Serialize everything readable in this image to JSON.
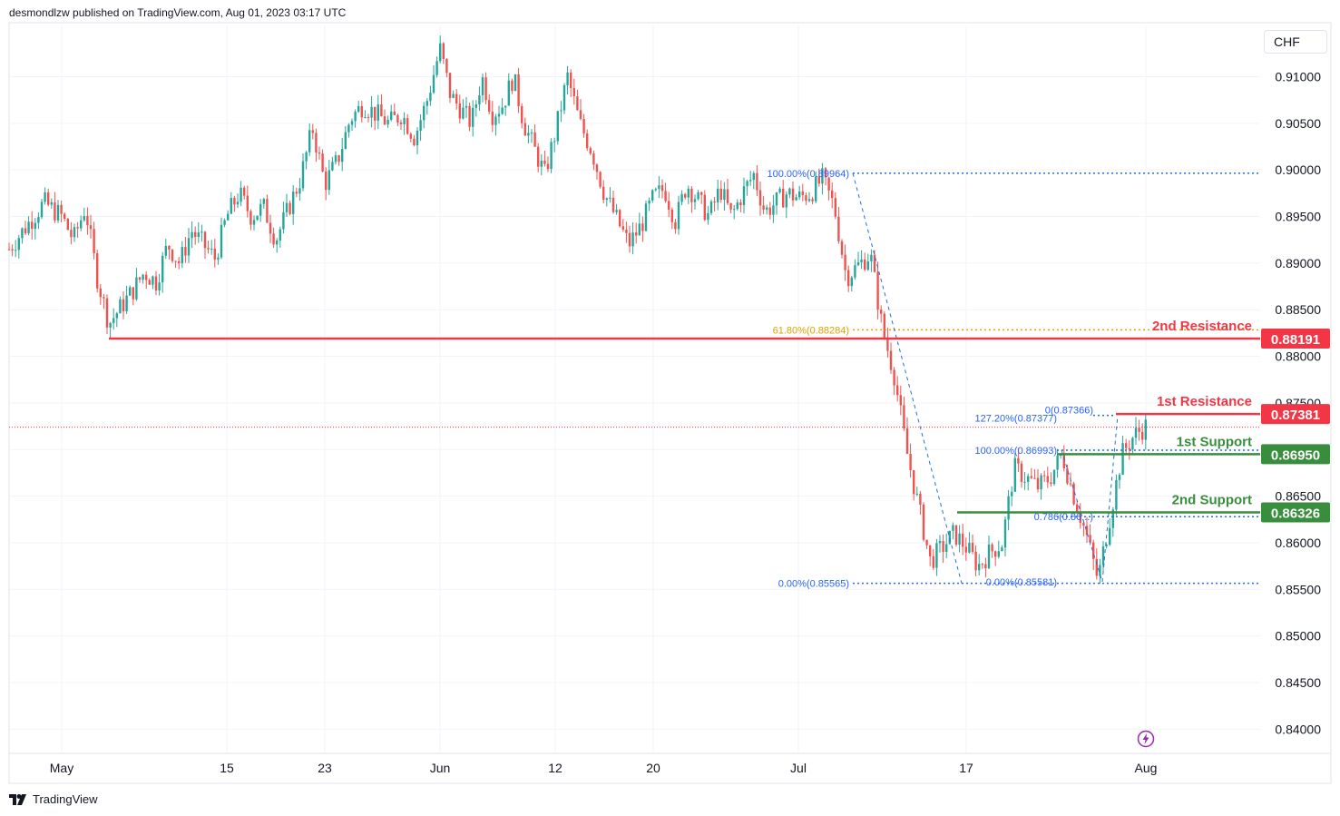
{
  "header": {
    "published": "desmondlzw published on TradingView.com, Aug 01, 2023 03:17 UTC"
  },
  "footer": {
    "brand": "TradingView"
  },
  "currency_label": "CHF",
  "colors": {
    "up": "#26a69a",
    "down": "#ef5350",
    "resistance": "#f23645",
    "support": "#388e3c",
    "fib": "#2962ff",
    "fib_gold": "#e0a100",
    "grid": "#f0f3fa"
  },
  "icons": [
    "tradingview-logo-icon",
    "lightning-icon"
  ],
  "chart_data": {
    "type": "candlestick",
    "ylim": [
      0.8375,
      0.9155
    ],
    "y_ticks": [
      "0.91000",
      "0.90500",
      "0.90000",
      "0.89500",
      "0.89000",
      "0.88500",
      "0.88000",
      "0.87500",
      "0.87000",
      "0.86500",
      "0.86000",
      "0.85500",
      "0.85000",
      "0.84500",
      "0.84000"
    ],
    "x_ticks": [
      {
        "label": "May",
        "date": "2023-05-01"
      },
      {
        "label": "15",
        "date": "2023-05-15"
      },
      {
        "label": "23",
        "date": "2023-05-23"
      },
      {
        "label": "Jun",
        "date": "2023-06-01"
      },
      {
        "label": "12",
        "date": "2023-06-12"
      },
      {
        "label": "20",
        "date": "2023-06-20"
      },
      {
        "label": "Jul",
        "date": "2023-07-03"
      },
      {
        "label": "17",
        "date": "2023-07-17"
      },
      {
        "label": "Aug",
        "date": "2023-08-01"
      }
    ],
    "close_path": [
      [
        "2023-04-28",
        0.8915
      ],
      [
        "2023-04-30",
        0.8965
      ],
      [
        "2023-05-01",
        0.895
      ],
      [
        "2023-05-02",
        0.8925
      ],
      [
        "2023-05-03",
        0.896
      ],
      [
        "2023-05-04",
        0.8885
      ],
      [
        "2023-05-05",
        0.8835
      ],
      [
        "2023-05-07",
        0.887
      ],
      [
        "2023-05-08",
        0.889
      ],
      [
        "2023-05-09",
        0.888
      ],
      [
        "2023-05-10",
        0.892
      ],
      [
        "2023-05-11",
        0.89
      ],
      [
        "2023-05-12",
        0.8935
      ],
      [
        "2023-05-14",
        0.8905
      ],
      [
        "2023-05-15",
        0.895
      ],
      [
        "2023-05-16",
        0.8975
      ],
      [
        "2023-05-17",
        0.895
      ],
      [
        "2023-05-18",
        0.896
      ],
      [
        "2023-05-19",
        0.8925
      ],
      [
        "2023-05-21",
        0.899
      ],
      [
        "2023-05-22",
        0.9045
      ],
      [
        "2023-05-23",
        0.8985
      ],
      [
        "2023-05-24",
        0.901
      ],
      [
        "2023-05-25",
        0.9055
      ],
      [
        "2023-05-26",
        0.907
      ],
      [
        "2023-05-28",
        0.905
      ],
      [
        "2023-05-29",
        0.906
      ],
      [
        "2023-05-30",
        0.9035
      ],
      [
        "2023-05-31",
        0.9075
      ],
      [
        "2023-06-01",
        0.913
      ],
      [
        "2023-06-02",
        0.908
      ],
      [
        "2023-06-04",
        0.905
      ],
      [
        "2023-06-05",
        0.91
      ],
      [
        "2023-06-06",
        0.906
      ],
      [
        "2023-06-07",
        0.907
      ],
      [
        "2023-06-08",
        0.91
      ],
      [
        "2023-06-09",
        0.905
      ],
      [
        "2023-06-11",
        0.8995
      ],
      [
        "2023-06-12",
        0.904
      ],
      [
        "2023-06-13",
        0.91
      ],
      [
        "2023-06-14",
        0.905
      ],
      [
        "2023-06-15",
        0.902
      ],
      [
        "2023-06-16",
        0.8975
      ],
      [
        "2023-06-18",
        0.892
      ],
      [
        "2023-06-19",
        0.894
      ],
      [
        "2023-06-20",
        0.897
      ],
      [
        "2023-06-21",
        0.898
      ],
      [
        "2023-06-22",
        0.8945
      ],
      [
        "2023-06-23",
        0.8985
      ],
      [
        "2023-06-25",
        0.895
      ],
      [
        "2023-06-26",
        0.898
      ],
      [
        "2023-06-27",
        0.895
      ],
      [
        "2023-06-28",
        0.8975
      ],
      [
        "2023-06-29",
        0.8995
      ],
      [
        "2023-06-30",
        0.8955
      ],
      [
        "2023-07-02",
        0.8975
      ],
      [
        "2023-07-03",
        0.897
      ],
      [
        "2023-07-04",
        0.8975
      ],
      [
        "2023-07-05",
        0.899
      ],
      [
        "2023-07-06",
        0.896
      ],
      [
        "2023-07-07",
        0.8885
      ],
      [
        "2023-07-09",
        0.891
      ],
      [
        "2023-07-10",
        0.883
      ],
      [
        "2023-07-11",
        0.878
      ],
      [
        "2023-07-12",
        0.87
      ],
      [
        "2023-07-13",
        0.864
      ],
      [
        "2023-07-14",
        0.858
      ],
      [
        "2023-07-16",
        0.861
      ],
      [
        "2023-07-17",
        0.8595
      ],
      [
        "2023-07-18",
        0.8575
      ],
      [
        "2023-07-19",
        0.859
      ],
      [
        "2023-07-20",
        0.86
      ],
      [
        "2023-07-21",
        0.868
      ],
      [
        "2023-07-23",
        0.866
      ],
      [
        "2023-07-24",
        0.867
      ],
      [
        "2023-07-25",
        0.8695
      ],
      [
        "2023-07-26",
        0.865
      ],
      [
        "2023-07-27",
        0.861
      ],
      [
        "2023-07-28",
        0.856
      ],
      [
        "2023-07-30",
        0.8695
      ],
      [
        "2023-07-31",
        0.8715
      ],
      [
        "2023-08-01",
        0.8725
      ]
    ],
    "levels": [
      {
        "name": "2nd Resistance",
        "value": "0.88191",
        "role": "resistance"
      },
      {
        "name": "1st Resistance",
        "value": "0.87381",
        "role": "resistance"
      },
      {
        "name": "1st Support",
        "value": "0.86950",
        "role": "support"
      },
      {
        "name": "2nd Support",
        "value": "0.86326",
        "role": "support"
      }
    ],
    "fib_labels": [
      {
        "text": "100.00%(0.89964)",
        "value": 0.89964,
        "color": "fib"
      },
      {
        "text": "61.80%(0.88284)",
        "value": 0.88284,
        "color": "fib_gold"
      },
      {
        "text": "0(0.87366)",
        "value": 0.87366,
        "color": "fib"
      },
      {
        "text": "127.20%(0.87377)",
        "value": 0.87377,
        "color": "fib"
      },
      {
        "text": "100.00%(0.86993)",
        "value": 0.86993,
        "color": "fib"
      },
      {
        "text": "0.786(0.86...)",
        "value": 0.8628,
        "color": "fib"
      },
      {
        "text": "0.00%(0.85565)",
        "value": 0.85565,
        "color": "fib"
      },
      {
        "text": "0.00%(0.85581)",
        "value": 0.85581,
        "color": "fib"
      }
    ],
    "current_price": 0.8724
  }
}
